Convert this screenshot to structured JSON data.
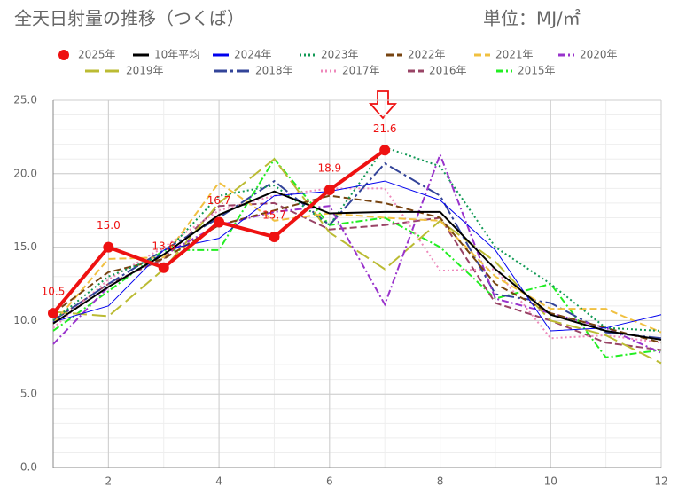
{
  "chart_data": {
    "type": "line",
    "title": "全天日射量の推移（つくば）",
    "unit_label": "単位：MJ/㎡",
    "x": [
      1,
      2,
      3,
      4,
      5,
      6,
      7,
      8,
      9,
      10,
      11,
      12
    ],
    "xlim": [
      1,
      12
    ],
    "xticks": [
      2,
      4,
      6,
      8,
      10,
      12
    ],
    "ylim": [
      0,
      25
    ],
    "yticks": [
      {
        "value": 0,
        "label": "0.0"
      },
      {
        "value": 5,
        "label": "5.0"
      },
      {
        "value": 10,
        "label": "10.0"
      },
      {
        "value": 15,
        "label": "15.0"
      },
      {
        "value": 20,
        "label": "20.0"
      },
      {
        "value": 25,
        "label": "25.0"
      }
    ],
    "grid": true,
    "legend": "top",
    "series": [
      {
        "name": "2025年",
        "color": "#ee1111",
        "style": "marker",
        "values": [
          10.5,
          15.0,
          13.6,
          16.7,
          15.7,
          18.9,
          21.6,
          null,
          null,
          null,
          null,
          null
        ],
        "value_labels": [
          "10.5",
          "15.0",
          "13.6",
          "16.7",
          "15.7",
          "18.9",
          "21.6",
          null,
          null,
          null,
          null,
          null
        ]
      },
      {
        "name": "10年平均",
        "color": "#000000",
        "style": "solid",
        "values": [
          9.8,
          12.3,
          14.5,
          17.2,
          18.8,
          17.3,
          17.4,
          17.4,
          13.5,
          10.4,
          9.3,
          8.7
        ]
      },
      {
        "name": "2024年",
        "color": "#0000ee",
        "style": "thin",
        "values": [
          9.9,
          11.0,
          14.8,
          15.6,
          18.5,
          18.8,
          19.5,
          18.2,
          14.8,
          9.3,
          9.5,
          10.4
        ]
      },
      {
        "name": "2023年",
        "color": "#119955",
        "style": "dot",
        "values": [
          10.0,
          13.0,
          14.5,
          18.5,
          19.2,
          16.5,
          21.8,
          20.5,
          15.0,
          12.5,
          9.5,
          9.3
        ]
      },
      {
        "name": "2022年",
        "color": "#774411",
        "style": "dash",
        "values": [
          10.5,
          13.3,
          14.2,
          16.5,
          17.5,
          18.5,
          18.0,
          17.0,
          12.5,
          10.5,
          9.5,
          8.5
        ]
      },
      {
        "name": "2021年",
        "color": "#f0c040",
        "style": "dash",
        "values": [
          9.8,
          14.2,
          14.3,
          19.4,
          16.8,
          17.3,
          17.0,
          16.8,
          13.0,
          10.8,
          10.8,
          9.2
        ]
      },
      {
        "name": "2020年",
        "color": "#9933cc",
        "style": "dashdot",
        "values": [
          8.4,
          12.3,
          14.5,
          16.5,
          17.4,
          17.8,
          11.1,
          21.3,
          11.5,
          10.5,
          9.5,
          7.8
        ]
      },
      {
        "name": "2019年",
        "color": "#bbbb33",
        "style": "longdash",
        "values": [
          10.6,
          10.3,
          13.5,
          18.0,
          21.0,
          16.0,
          13.5,
          16.8,
          14.0,
          10.0,
          9.0,
          7.1
        ]
      },
      {
        "name": "2018年",
        "color": "#334499",
        "style": "longdashdot",
        "values": [
          10.0,
          12.5,
          14.8,
          17.0,
          19.5,
          16.5,
          20.7,
          18.5,
          11.8,
          11.2,
          9.2,
          8.8
        ]
      },
      {
        "name": "2017年",
        "color": "#ee88bb",
        "style": "dot",
        "values": [
          9.5,
          12.8,
          15.0,
          17.5,
          18.5,
          19.0,
          19.0,
          13.4,
          13.5,
          8.8,
          9.0,
          8.5
        ]
      },
      {
        "name": "2016年",
        "color": "#994466",
        "style": "dash",
        "values": [
          10.0,
          12.5,
          14.2,
          17.8,
          18.0,
          16.2,
          16.5,
          17.0,
          11.2,
          10.0,
          8.5,
          8.0
        ]
      },
      {
        "name": "2015年",
        "color": "#22ee22",
        "style": "dashdot",
        "values": [
          9.3,
          12.0,
          14.8,
          14.8,
          21.0,
          16.5,
          17.0,
          15.0,
          11.5,
          12.5,
          7.5,
          8.0
        ]
      }
    ]
  }
}
